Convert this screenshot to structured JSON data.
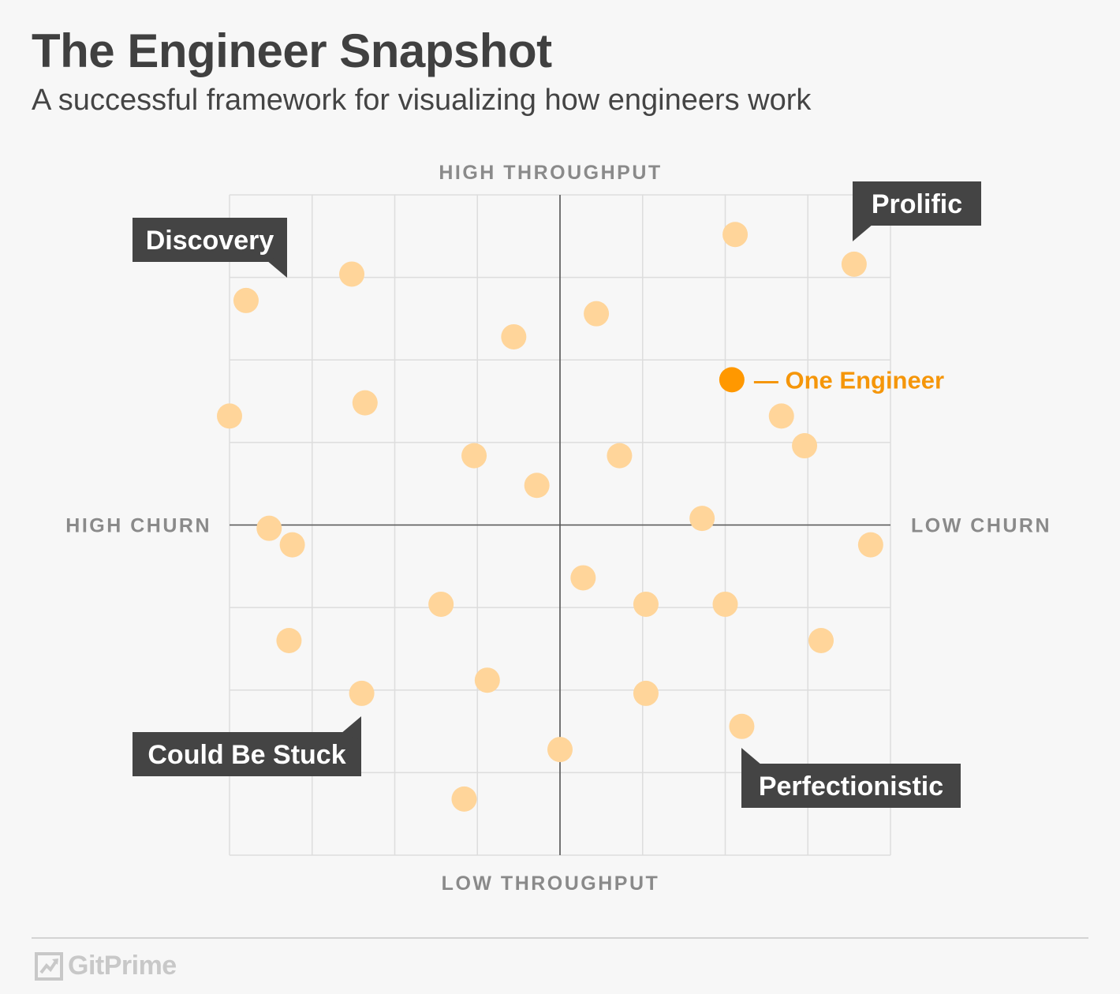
{
  "header": {
    "title": "The Engineer Snapshot",
    "subtitle": "A successful framework for visualizing how engineers work"
  },
  "chart_data": {
    "type": "scatter",
    "x_range": [
      -10,
      10
    ],
    "y_range": [
      -10,
      10
    ],
    "grid": true,
    "axis_labels": {
      "top": "HIGH THROUGHPUT",
      "bottom": "LOW THROUGHPUT",
      "left": "HIGH CHURN",
      "right": "LOW CHURN"
    },
    "quadrants": [
      {
        "name": "Discovery",
        "position": "top-left"
      },
      {
        "name": "Prolific",
        "position": "top-right"
      },
      {
        "name": "Could Be Stuck",
        "position": "bottom-left"
      },
      {
        "name": "Perfectionistic",
        "position": "bottom-right"
      }
    ],
    "highlight": {
      "label": "— One Engineer",
      "x": 5.2,
      "y": 4.4
    },
    "points": [
      {
        "x": 5.3,
        "y": 8.8
      },
      {
        "x": 8.9,
        "y": 7.9
      },
      {
        "x": -6.3,
        "y": 7.6
      },
      {
        "x": -9.5,
        "y": 6.8
      },
      {
        "x": 1.1,
        "y": 6.4
      },
      {
        "x": -1.4,
        "y": 5.7
      },
      {
        "x": 6.7,
        "y": 3.3
      },
      {
        "x": -10.0,
        "y": 3.3
      },
      {
        "x": -5.9,
        "y": 3.7
      },
      {
        "x": 7.4,
        "y": 2.4
      },
      {
        "x": -2.6,
        "y": 2.1
      },
      {
        "x": 1.8,
        "y": 2.1
      },
      {
        "x": -0.7,
        "y": 1.2
      },
      {
        "x": 4.3,
        "y": 0.2
      },
      {
        "x": -8.8,
        "y": -0.1
      },
      {
        "x": -8.1,
        "y": -0.6
      },
      {
        "x": 9.4,
        "y": -0.6
      },
      {
        "x": 0.7,
        "y": -1.6
      },
      {
        "x": -3.6,
        "y": -2.4
      },
      {
        "x": 2.6,
        "y": -2.4
      },
      {
        "x": 5.0,
        "y": -2.4
      },
      {
        "x": -8.2,
        "y": -3.5
      },
      {
        "x": 7.9,
        "y": -3.5
      },
      {
        "x": -2.2,
        "y": -4.7
      },
      {
        "x": -6.0,
        "y": -5.1
      },
      {
        "x": 2.6,
        "y": -5.1
      },
      {
        "x": 5.5,
        "y": -6.1
      },
      {
        "x": 0.0,
        "y": -6.8
      },
      {
        "x": -2.9,
        "y": -8.3
      }
    ]
  },
  "footer": {
    "brand": "GitPrime"
  },
  "colors": {
    "point": "#ffd59a",
    "highlight": "#ff9800",
    "highlight_label": "#f5960a",
    "callout_bg": "#444444",
    "axis": "#555555",
    "grid": "#dddddd",
    "axis_label": "#8a8a8a"
  }
}
